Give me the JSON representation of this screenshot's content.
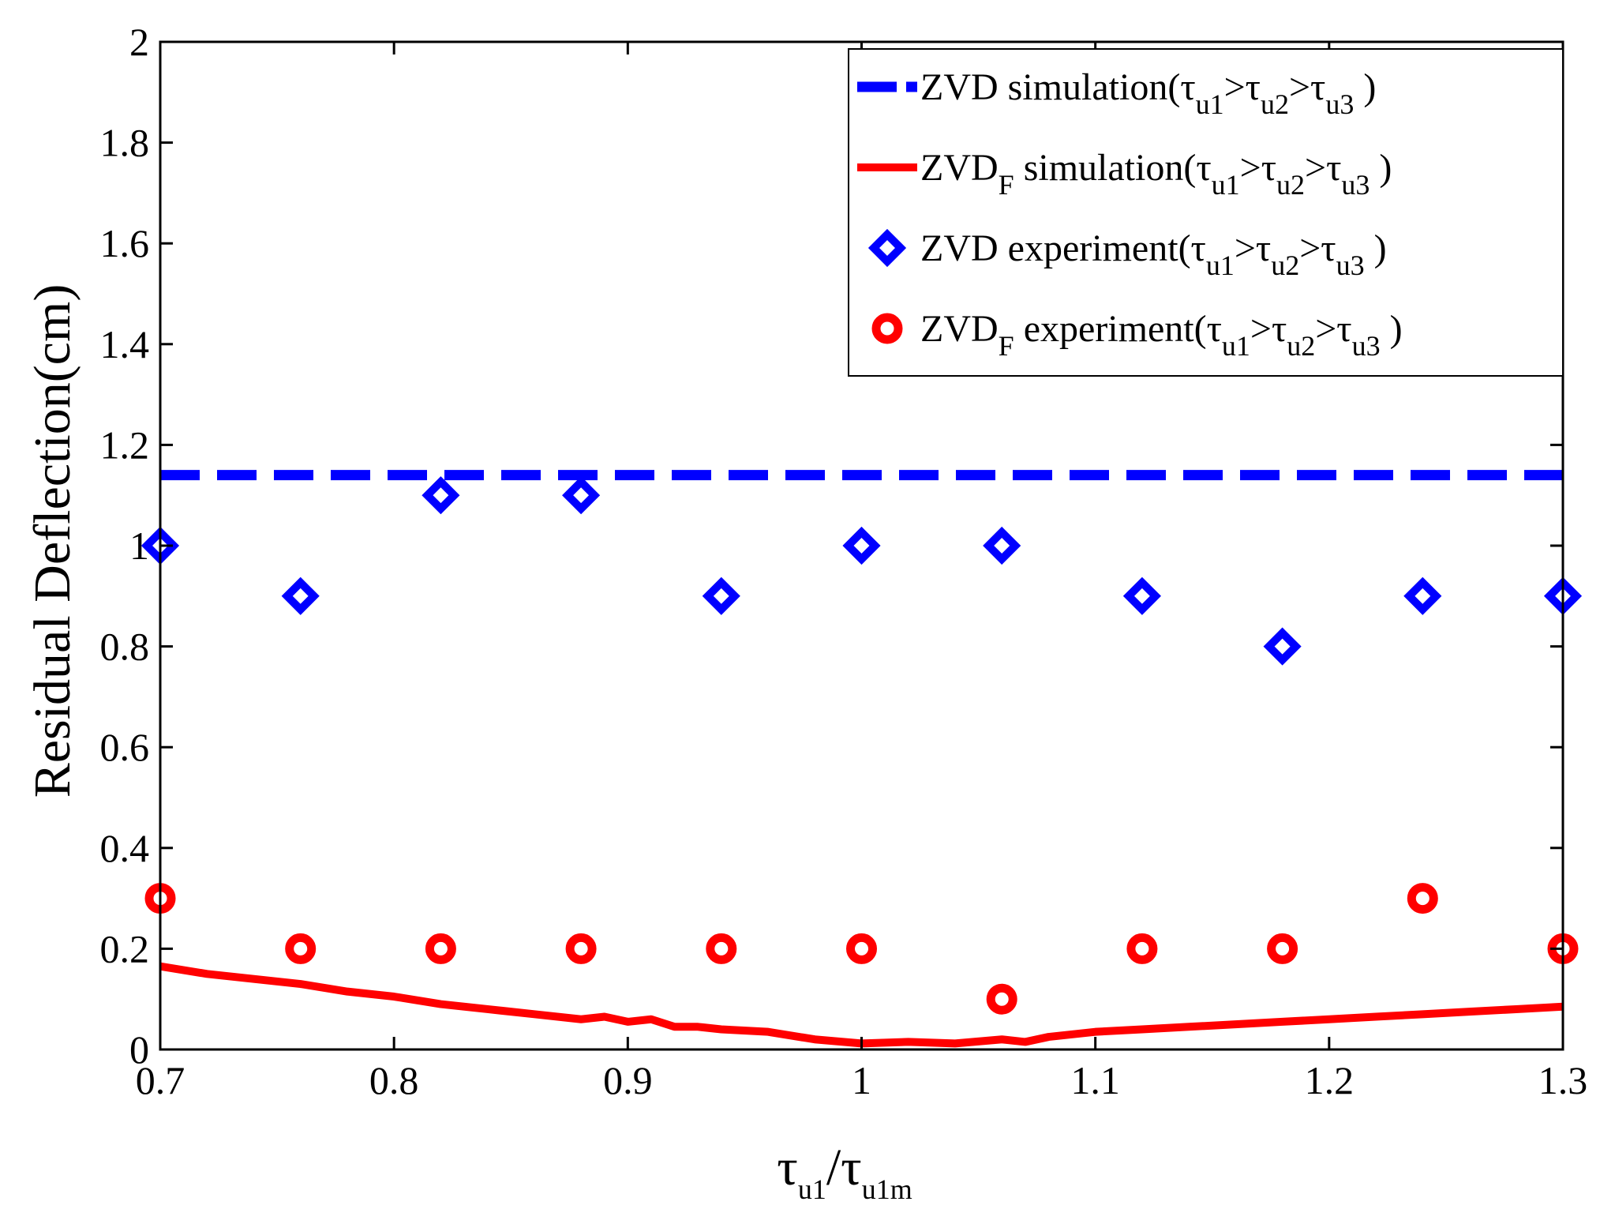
{
  "chart_data": {
    "type": "scatter",
    "title": "",
    "xlabel": {
      "main": "τ",
      "sub1": "u1",
      "slash": "/τ",
      "sub2": "u1m"
    },
    "ylabel": "Residual Deflection(cm)",
    "xlim": [
      0.7,
      1.3
    ],
    "ylim": [
      0,
      2
    ],
    "x_ticks": [
      0.7,
      0.8,
      0.9,
      1,
      1.1,
      1.2,
      1.3
    ],
    "x_tick_labels": [
      "0.7",
      "0.8",
      "0.9",
      "1",
      "1.1",
      "1.2",
      "1.3"
    ],
    "y_ticks": [
      0,
      0.2,
      0.4,
      0.6,
      0.8,
      1,
      1.2,
      1.4,
      1.6,
      1.8,
      2
    ],
    "y_tick_labels": [
      "0",
      "0.2",
      "0.4",
      "0.6",
      "0.8",
      "1",
      "1.2",
      "1.4",
      "1.6",
      "1.8",
      "2"
    ],
    "grid": false,
    "legend_position": "top-right",
    "series": [
      {
        "name": "ZVD simulation(τu1>τu2>τu3)",
        "label_parts": {
          "prefix": "ZVD",
          "prefix_sub": "",
          "desc": "simulation(",
          "s1": "u1",
          "s2": "u2",
          "s3": "u3",
          "tau": "τ",
          "gt": ">",
          "close": ")"
        },
        "style": "dashed-line",
        "color": "#0000ff",
        "x": [
          0.7,
          1.3
        ],
        "y": [
          1.14,
          1.14
        ]
      },
      {
        "name": "ZVDF simulation(τu1>τu2>τu3)",
        "label_parts": {
          "prefix": "ZVD",
          "prefix_sub": "F",
          "desc": "simulation(",
          "s1": "u1",
          "s2": "u2",
          "s3": "u3",
          "tau": "τ",
          "gt": ">",
          "close": ")"
        },
        "style": "solid-line",
        "color": "#ff0000",
        "x": [
          0.7,
          0.72,
          0.74,
          0.76,
          0.78,
          0.8,
          0.82,
          0.84,
          0.86,
          0.88,
          0.89,
          0.9,
          0.91,
          0.92,
          0.93,
          0.94,
          0.96,
          0.98,
          1.0,
          1.02,
          1.04,
          1.06,
          1.07,
          1.08,
          1.1,
          1.12,
          1.14,
          1.16,
          1.18,
          1.2,
          1.22,
          1.24,
          1.26,
          1.28,
          1.3
        ],
        "y": [
          0.165,
          0.15,
          0.14,
          0.13,
          0.115,
          0.105,
          0.09,
          0.08,
          0.07,
          0.06,
          0.065,
          0.055,
          0.06,
          0.045,
          0.045,
          0.04,
          0.035,
          0.02,
          0.012,
          0.015,
          0.012,
          0.02,
          0.015,
          0.025,
          0.035,
          0.04,
          0.045,
          0.05,
          0.055,
          0.06,
          0.065,
          0.07,
          0.075,
          0.08,
          0.085
        ]
      },
      {
        "name": "ZVD experiment(τu1>τu2>τu3)",
        "label_parts": {
          "prefix": "ZVD",
          "prefix_sub": "",
          "desc": "experiment(",
          "s1": "u1",
          "s2": "u2",
          "s3": "u3",
          "tau": "τ",
          "gt": ">",
          "close": ")"
        },
        "style": "diamond-marker",
        "color": "#0000ff",
        "x": [
          0.7,
          0.76,
          0.82,
          0.88,
          0.94,
          1.0,
          1.06,
          1.12,
          1.18,
          1.24,
          1.3
        ],
        "y": [
          1.0,
          0.9,
          1.1,
          1.1,
          0.9,
          1.0,
          1.0,
          0.9,
          0.8,
          0.9,
          0.9
        ]
      },
      {
        "name": "ZVDF experiment(τu1>τu2>τu3)",
        "label_parts": {
          "prefix": "ZVD",
          "prefix_sub": "F",
          "desc": "experiment(",
          "s1": "u1",
          "s2": "u2",
          "s3": "u3",
          "tau": "τ",
          "gt": ">",
          "close": ")"
        },
        "style": "circle-marker",
        "color": "#ff0000",
        "x": [
          0.7,
          0.76,
          0.82,
          0.88,
          0.94,
          1.0,
          1.06,
          1.12,
          1.18,
          1.24,
          1.3
        ],
        "y": [
          0.3,
          0.2,
          0.2,
          0.2,
          0.2,
          0.2,
          0.1,
          0.2,
          0.2,
          0.3,
          0.2
        ]
      }
    ]
  }
}
